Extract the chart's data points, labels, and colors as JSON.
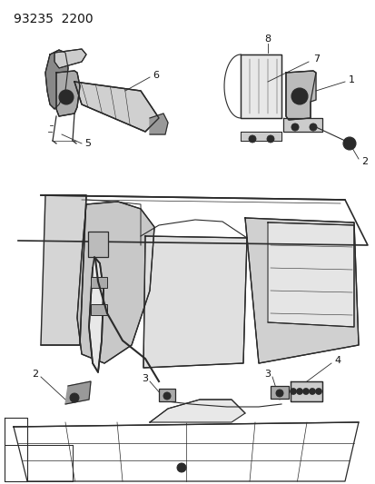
{
  "title": "93235  2200",
  "bg": "#ffffff",
  "lc": "#2a2a2a",
  "tc": "#111111",
  "fig_w": 4.14,
  "fig_h": 5.33,
  "dpi": 100
}
